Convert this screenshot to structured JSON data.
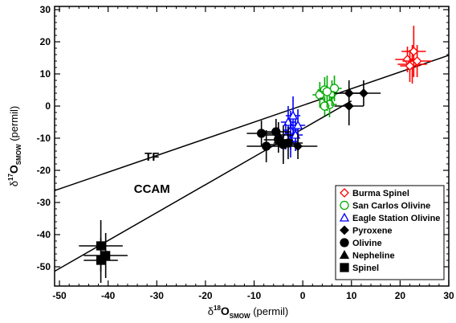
{
  "chart_data": {
    "type": "scatter",
    "xlabel": {
      "prefix": "δ",
      "sup": "18",
      "main": "O",
      "sub": "SMOW",
      "unit": " (permil)"
    },
    "ylabel": {
      "prefix": "δ",
      "sup": "17",
      "main": "O",
      "sub": "SMOW",
      "unit": " (permil)"
    },
    "xlim": [
      -51,
      30
    ],
    "ylim": [
      -56,
      31
    ],
    "xticks": [
      -50,
      -40,
      -30,
      -20,
      -10,
      0,
      10,
      20,
      30
    ],
    "yticks": [
      -50,
      -40,
      -30,
      -20,
      -10,
      0,
      10,
      20,
      30
    ],
    "lines": [
      {
        "name": "TF",
        "x": [
          -51,
          30
        ],
        "y": [
          -26.3,
          15.8
        ]
      },
      {
        "name": "CCAM",
        "x": [
          -51,
          10
        ],
        "y": [
          -51.4,
          1.6
        ]
      }
    ],
    "series": [
      {
        "name": "Burma Spinel",
        "marker": "diamond-open",
        "color": "#ff0000",
        "points": [
          [
            21.5,
            14.5,
            2.5,
            4
          ],
          [
            22.5,
            13,
            3,
            6
          ],
          [
            22.8,
            17,
            2.5,
            8
          ],
          [
            23.5,
            14,
            3,
            5
          ],
          [
            22,
            12.5,
            2,
            5
          ]
        ]
      },
      {
        "name": "San Carlos Olivine",
        "marker": "circle-open",
        "color": "#00aa00",
        "points": [
          [
            3.5,
            3.5,
            1.5,
            4
          ],
          [
            4.5,
            5,
            1.5,
            4
          ],
          [
            5,
            2.5,
            1.5,
            4
          ],
          [
            5.5,
            0.5,
            1.5,
            4
          ],
          [
            6,
            4,
            1.5,
            4
          ],
          [
            4.5,
            0,
            1,
            3
          ],
          [
            6.5,
            5.5,
            1.5,
            4
          ],
          [
            5,
            4.5,
            1.5,
            5
          ]
        ]
      },
      {
        "name": "Eagle Station Olivine",
        "marker": "triangle-open",
        "color": "#0000ff",
        "points": [
          [
            -3,
            -5,
            1.5,
            5
          ],
          [
            -2.5,
            -7.5,
            1.5,
            6
          ],
          [
            -2,
            -3,
            1.5,
            6
          ],
          [
            -1.5,
            -9,
            1.5,
            5
          ],
          [
            -2.5,
            -11,
            1.5,
            5
          ],
          [
            -1,
            -6,
            1.5,
            5
          ],
          [
            -3.5,
            -9.5,
            1.5,
            4
          ]
        ]
      },
      {
        "name": "Pyroxene",
        "marker": "diamond",
        "color": "#000000",
        "points": [
          [
            12.5,
            4,
            3.5,
            4
          ],
          [
            9.5,
            0,
            3,
            6
          ],
          [
            9.5,
            4,
            3,
            4
          ],
          [
            -1,
            -12.5,
            4,
            4
          ]
        ]
      },
      {
        "name": "Olivine",
        "marker": "circle",
        "color": "#000000",
        "points": [
          [
            -8.5,
            -8.5,
            3,
            4
          ],
          [
            -7.5,
            -12.5,
            4,
            5
          ],
          [
            -5.5,
            -8,
            3,
            4
          ],
          [
            -5,
            -10.5,
            3,
            4
          ],
          [
            -4,
            -12,
            3,
            6
          ],
          [
            -3,
            -11.5,
            3,
            5
          ]
        ]
      },
      {
        "name": "Nepheline",
        "marker": "triangle",
        "color": "#000000",
        "points": [
          [
            -5,
            -9,
            3,
            4
          ]
        ]
      },
      {
        "name": "Spinel",
        "marker": "square",
        "color": "#000000",
        "points": [
          [
            -41.5,
            -43.5,
            4.5,
            8
          ],
          [
            -40.5,
            -46.5,
            4.5,
            7
          ],
          [
            -41.5,
            -48,
            3.5,
            7
          ]
        ]
      }
    ],
    "legend": {
      "position": "bottom-right"
    },
    "grid": false
  }
}
